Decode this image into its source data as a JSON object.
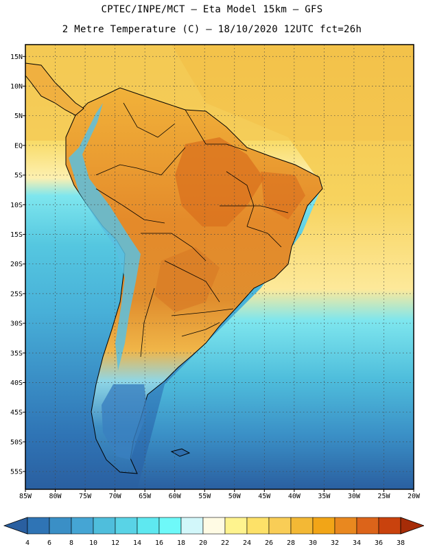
{
  "header": {
    "line1": "CPTEC/INPE/MCT –  Eta Model 15km – GFS",
    "line2": "2 Metre Temperature (C) – 18/10/2020 12UTC fct=26h"
  },
  "map": {
    "lat_labels": [
      "15N",
      "10N",
      "5N",
      "EQ",
      "5S",
      "10S",
      "15S",
      "20S",
      "25S",
      "30S",
      "35S",
      "40S",
      "45S",
      "50S",
      "55S"
    ],
    "lon_labels": [
      "85W",
      "80W",
      "75W",
      "70W",
      "65W",
      "60W",
      "55W",
      "50W",
      "45W",
      "40W",
      "35W",
      "30W",
      "25W",
      "20W"
    ],
    "lat_range": [
      -58,
      17
    ],
    "lon_range": [
      -85,
      -20
    ],
    "grid_step_deg": 5
  },
  "colorbar": {
    "labels": [
      "4",
      "6",
      "8",
      "10",
      "12",
      "14",
      "16",
      "18",
      "20",
      "22",
      "24",
      "26",
      "28",
      "30",
      "32",
      "34",
      "36",
      "38"
    ],
    "colors": [
      "#2a5fa0",
      "#2f74b5",
      "#3a8fc6",
      "#45a5d4",
      "#4fbedc",
      "#59d3e6",
      "#5ee8f0",
      "#6ef9f9",
      "#d2f7fa",
      "#fffbe4",
      "#fef38e",
      "#fde168",
      "#f9cd56",
      "#f3b835",
      "#f2a517",
      "#e9881f",
      "#dc641a",
      "#c9420d",
      "#a62c07"
    ]
  },
  "legend": {
    "warm": "#e9a030",
    "hot": "#d97a1f",
    "ocean_warm": "#f5cf5a",
    "ocean_cool": "#4fbedc",
    "ocean_cold": "#2a5fa0"
  }
}
